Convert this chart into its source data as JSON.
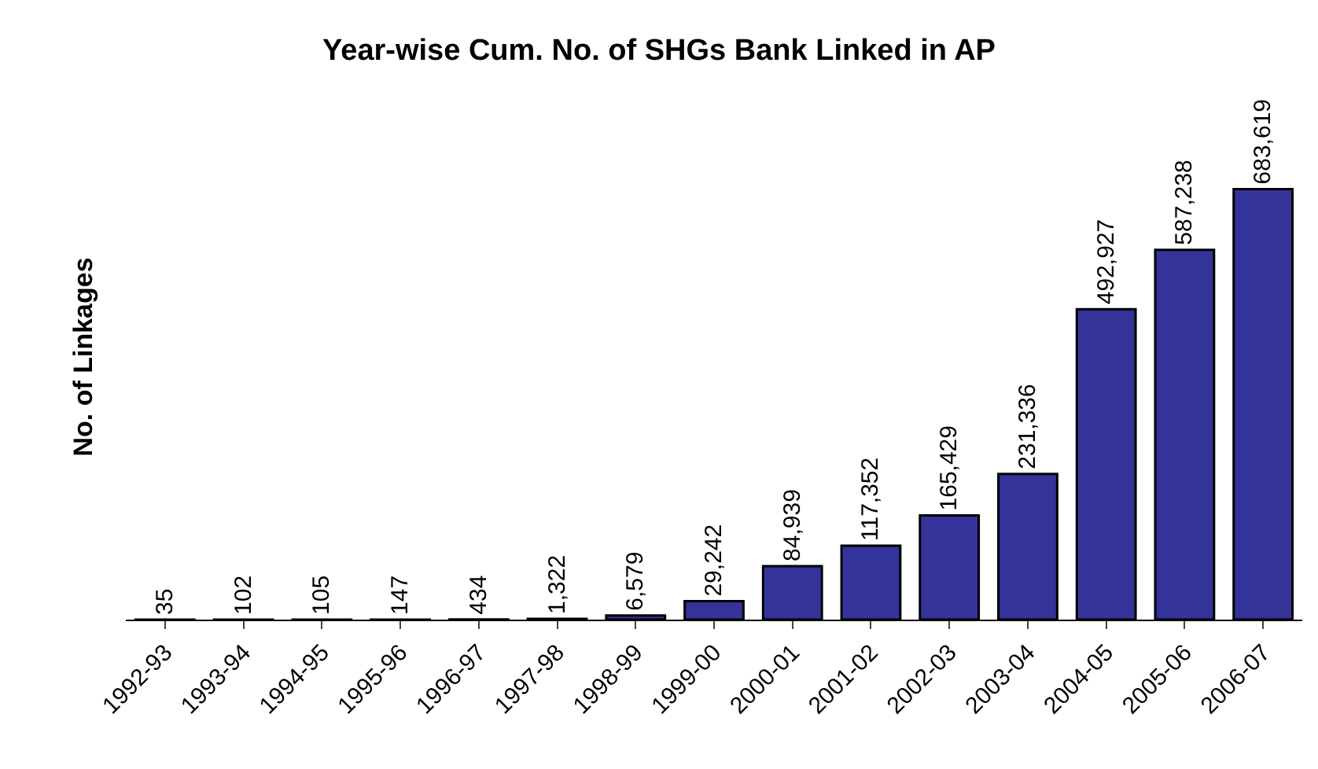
{
  "chart_data": {
    "type": "bar",
    "title": "Year-wise Cum. No. of SHGs Bank Linked in AP",
    "ylabel": "No. of Linkages",
    "categories": [
      "1992-93",
      "1993-94",
      "1994-95",
      "1995-96",
      "1996-97",
      "1997-98",
      "1998-99",
      "1999-00",
      "2000-01",
      "2001-02",
      "2002-03",
      "2003-04",
      "2004-05",
      "2005-06",
      "2006-07"
    ],
    "values": [
      35,
      102,
      105,
      147,
      434,
      1322,
      6579,
      29242,
      84939,
      117352,
      165429,
      231336,
      492927,
      587238,
      683619
    ],
    "value_labels": [
      "35",
      "102",
      "105",
      "147",
      "434",
      "1,322",
      "6,579",
      "29,242",
      "84,939",
      "117,352",
      "165,429",
      "231,336",
      "492,927",
      "587,238",
      "683,619"
    ],
    "color": "#333399",
    "tick_labels": "x"
  }
}
